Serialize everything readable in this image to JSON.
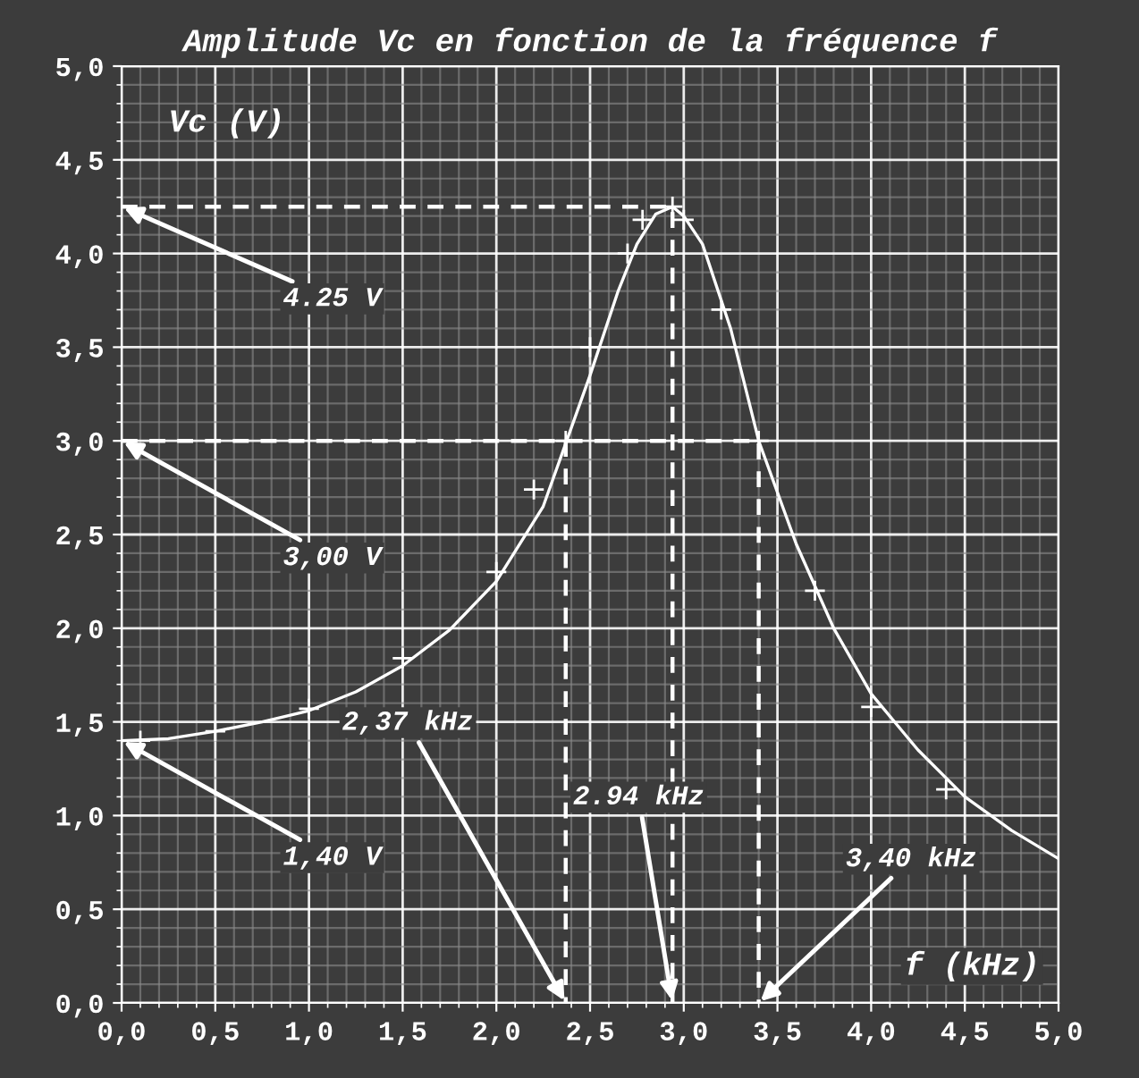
{
  "chart_data": {
    "type": "scatter",
    "title": "Amplitude Vc en fonction de la fréquence f",
    "xlabel": "f (kHz)",
    "ylabel": "Vc (V)",
    "xlim": [
      0,
      5
    ],
    "ylim": [
      0,
      5
    ],
    "xticks": [
      {
        "value": 0,
        "label": "0,0"
      },
      {
        "value": 0.5,
        "label": "0,5"
      },
      {
        "value": 1,
        "label": "1,0"
      },
      {
        "value": 1.5,
        "label": "1,5"
      },
      {
        "value": 2,
        "label": "2,0"
      },
      {
        "value": 2.5,
        "label": "2,5"
      },
      {
        "value": 3,
        "label": "3,0"
      },
      {
        "value": 3.5,
        "label": "3,5"
      },
      {
        "value": 4,
        "label": "4,0"
      },
      {
        "value": 4.5,
        "label": "4,5"
      },
      {
        "value": 5,
        "label": "5,0"
      }
    ],
    "yticks": [
      {
        "value": 0,
        "label": "0,0"
      },
      {
        "value": 0.5,
        "label": "0,5"
      },
      {
        "value": 1,
        "label": "1,0"
      },
      {
        "value": 1.5,
        "label": "1,5"
      },
      {
        "value": 2,
        "label": "2,0"
      },
      {
        "value": 2.5,
        "label": "2,5"
      },
      {
        "value": 3,
        "label": "3,0"
      },
      {
        "value": 3.5,
        "label": "3,5"
      },
      {
        "value": 4,
        "label": "4,0"
      },
      {
        "value": 4.5,
        "label": "4,5"
      },
      {
        "value": 5,
        "label": "5,0"
      }
    ],
    "grid": true,
    "marker": "cross",
    "series": [
      {
        "color": "#ffffff",
        "x": [
          0.1,
          0.5,
          1.0,
          1.5,
          2.0,
          2.2,
          2.37,
          2.5,
          2.7,
          2.78,
          2.94,
          3.0,
          3.2,
          3.4,
          3.7,
          4.0,
          4.4
        ],
        "values": [
          1.4,
          1.45,
          1.57,
          1.84,
          2.3,
          2.74,
          3.0,
          3.5,
          4.0,
          4.18,
          4.25,
          4.18,
          3.7,
          3.0,
          2.2,
          1.58,
          1.14
        ]
      },
      {
        "type": "line",
        "color": "#ffffff",
        "marker": "none",
        "line_style": "solid",
        "x": [
          0,
          0.25,
          0.5,
          0.75,
          1.0,
          1.25,
          1.5,
          1.75,
          2.0,
          2.25,
          2.5,
          2.65,
          2.75,
          2.85,
          2.94,
          3.0,
          3.1,
          3.25,
          3.4,
          3.6,
          3.8,
          4.0,
          4.25,
          4.5,
          4.75,
          5.0
        ],
        "values": [
          1.4,
          1.41,
          1.45,
          1.5,
          1.56,
          1.66,
          1.8,
          1.99,
          2.25,
          2.65,
          3.35,
          3.8,
          4.05,
          4.21,
          4.25,
          4.2,
          4.05,
          3.6,
          3.0,
          2.45,
          2.0,
          1.65,
          1.35,
          1.1,
          0.92,
          0.77
        ]
      },
      {
        "type": "line",
        "color": "#ffffff",
        "marker": "none",
        "line_style": "dashed",
        "x": [
          0,
          2.94,
          2.94
        ],
        "values": [
          4.25,
          4.25,
          0
        ]
      },
      {
        "type": "line",
        "color": "#ffffff",
        "marker": "none",
        "line_style": "dashed",
        "x": [
          0,
          3.4,
          3.4
        ],
        "values": [
          3.0,
          3.0,
          0
        ]
      },
      {
        "type": "line",
        "color": "#ffffff",
        "marker": "none",
        "line_style": "dashed",
        "x": [
          2.37,
          2.37
        ],
        "values": [
          3.0,
          0
        ]
      }
    ],
    "annotations": [
      {
        "text": "4.25 V",
        "x": 0,
        "y": 4.25
      },
      {
        "text": "3,00 V",
        "x": 0,
        "y": 3.0
      },
      {
        "text": "1,40 V",
        "x": 0,
        "y": 1.4
      },
      {
        "text": "2,37 kHz",
        "x": 2.37,
        "y": 0
      },
      {
        "text": "2.94 kHz",
        "x": 2.94,
        "y": 0
      },
      {
        "text": "3,40 kHz",
        "x": 3.4,
        "y": 0
      }
    ]
  }
}
